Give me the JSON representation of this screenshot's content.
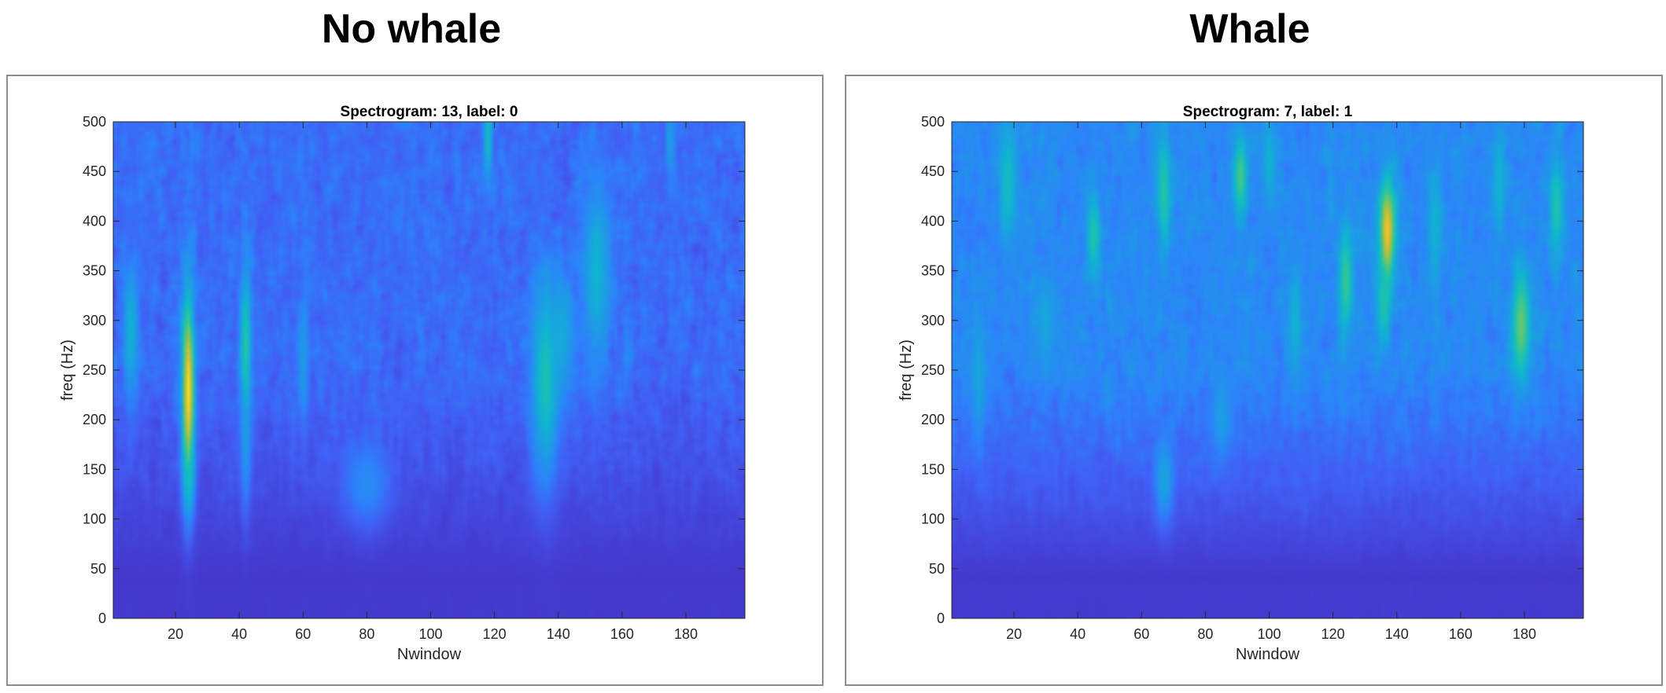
{
  "panels": [
    {
      "heading": "No whale",
      "chart_data": {
        "type": "heatmap",
        "title": "Spectrogram: 13, label: 0",
        "xlabel": "Nwindow",
        "ylabel": "freq (Hz)",
        "xlim": [
          0.5,
          198.5
        ],
        "ylim": [
          0,
          500
        ],
        "xticks": [
          20,
          40,
          60,
          80,
          100,
          120,
          140,
          160,
          180
        ],
        "yticks": [
          0,
          50,
          100,
          150,
          200,
          250,
          300,
          350,
          400,
          450,
          500
        ],
        "colormap": "parula",
        "grid": false,
        "seed": 13,
        "base_level": 0.24,
        "hotspots": [
          {
            "x": 24,
            "y": 230,
            "w": 1.4,
            "h": 70,
            "v": 0.95
          },
          {
            "x": 24,
            "y": 150,
            "w": 1.2,
            "h": 30,
            "v": 0.55
          },
          {
            "x": 42,
            "y": 275,
            "w": 1.2,
            "h": 55,
            "v": 0.62
          },
          {
            "x": 42,
            "y": 180,
            "w": 1.0,
            "h": 50,
            "v": 0.4
          },
          {
            "x": 6,
            "y": 290,
            "w": 1.6,
            "h": 45,
            "v": 0.5
          },
          {
            "x": 60,
            "y": 260,
            "w": 1.2,
            "h": 45,
            "v": 0.4
          },
          {
            "x": 118,
            "y": 485,
            "w": 1.0,
            "h": 30,
            "v": 0.55
          },
          {
            "x": 136,
            "y": 240,
            "w": 3.0,
            "h": 70,
            "v": 0.58
          },
          {
            "x": 141,
            "y": 285,
            "w": 3.0,
            "h": 40,
            "v": 0.46
          },
          {
            "x": 152,
            "y": 350,
            "w": 3.0,
            "h": 65,
            "v": 0.5
          },
          {
            "x": 80,
            "y": 135,
            "w": 5.0,
            "h": 30,
            "v": 0.34
          },
          {
            "x": 175,
            "y": 480,
            "w": 1.0,
            "h": 25,
            "v": 0.42
          }
        ]
      }
    },
    {
      "heading": "Whale",
      "chart_data": {
        "type": "heatmap",
        "title": "Spectrogram: 7, label: 1",
        "xlabel": "Nwindow",
        "ylabel": "freq (Hz)",
        "xlim": [
          0.5,
          198.5
        ],
        "ylim": [
          0,
          500
        ],
        "xticks": [
          20,
          40,
          60,
          80,
          100,
          120,
          140,
          160,
          180
        ],
        "yticks": [
          0,
          50,
          100,
          150,
          200,
          250,
          300,
          350,
          400,
          450,
          500
        ],
        "colormap": "parula",
        "grid": false,
        "seed": 7,
        "base_level": 0.33,
        "hotspots": [
          {
            "x": 137,
            "y": 390,
            "w": 1.8,
            "h": 38,
            "v": 0.9
          },
          {
            "x": 136,
            "y": 320,
            "w": 1.5,
            "h": 30,
            "v": 0.6
          },
          {
            "x": 179,
            "y": 295,
            "w": 2.0,
            "h": 40,
            "v": 0.72
          },
          {
            "x": 91,
            "y": 445,
            "w": 1.5,
            "h": 30,
            "v": 0.68
          },
          {
            "x": 67,
            "y": 430,
            "w": 1.5,
            "h": 40,
            "v": 0.62
          },
          {
            "x": 124,
            "y": 340,
            "w": 1.5,
            "h": 40,
            "v": 0.65
          },
          {
            "x": 45,
            "y": 385,
            "w": 1.5,
            "h": 30,
            "v": 0.6
          },
          {
            "x": 18,
            "y": 440,
            "w": 2.0,
            "h": 40,
            "v": 0.55
          },
          {
            "x": 190,
            "y": 415,
            "w": 1.5,
            "h": 35,
            "v": 0.6
          },
          {
            "x": 172,
            "y": 440,
            "w": 1.5,
            "h": 40,
            "v": 0.5
          },
          {
            "x": 100,
            "y": 460,
            "w": 1.5,
            "h": 30,
            "v": 0.5
          },
          {
            "x": 152,
            "y": 395,
            "w": 1.5,
            "h": 40,
            "v": 0.5
          },
          {
            "x": 67,
            "y": 140,
            "w": 2.0,
            "h": 30,
            "v": 0.44
          },
          {
            "x": 85,
            "y": 205,
            "w": 2.0,
            "h": 30,
            "v": 0.42
          },
          {
            "x": 108,
            "y": 300,
            "w": 1.5,
            "h": 35,
            "v": 0.5
          },
          {
            "x": 9,
            "y": 245,
            "w": 1.5,
            "h": 40,
            "v": 0.45
          },
          {
            "x": 30,
            "y": 300,
            "w": 2.0,
            "h": 30,
            "v": 0.45
          }
        ]
      }
    }
  ]
}
